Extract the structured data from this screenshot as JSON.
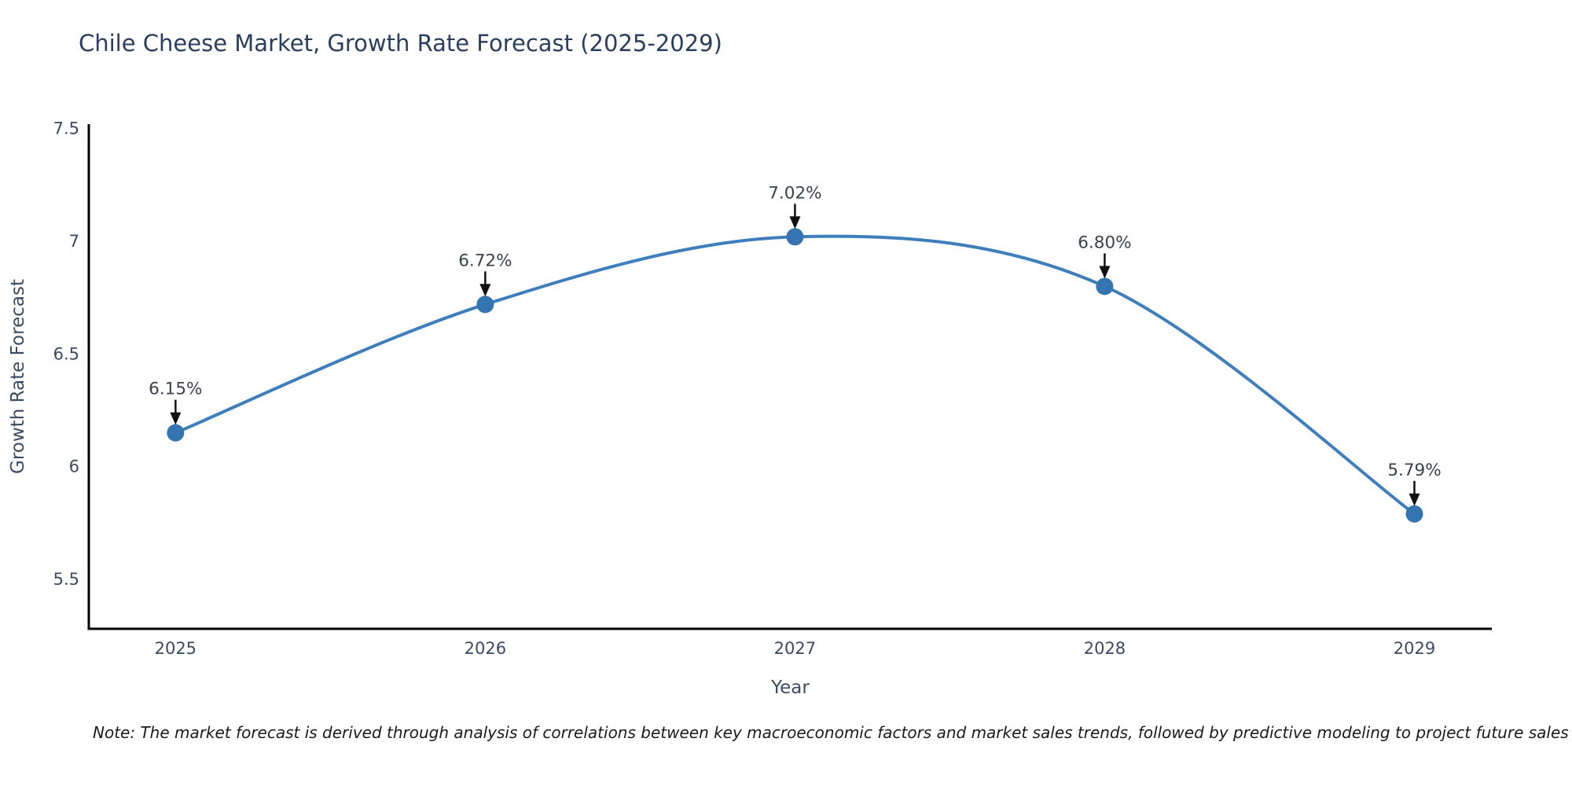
{
  "note": "Note: The market forecast is derived through analysis of correlations between key macroeconomic factors and market sales trends, followed by predictive modeling to project future sales",
  "chart_data": {
    "type": "line",
    "title": "Chile Cheese Market, Growth Rate Forecast (2025-2029)",
    "x": [
      2025,
      2026,
      2027,
      2028,
      2029
    ],
    "x_tick_labels": [
      "2025",
      "2026",
      "2027",
      "2028",
      "2029"
    ],
    "values": [
      6.15,
      6.72,
      7.02,
      6.8,
      5.79
    ],
    "point_labels": [
      "6.15%",
      "6.72%",
      "7.02%",
      "6.80%",
      "5.79%"
    ],
    "xlabel": "Year",
    "ylabel": "Growth Rate Forecast",
    "yticks": [
      7.5,
      7,
      6.5,
      6,
      5.5
    ],
    "ytick_labels": [
      "7.5",
      "7",
      "6.5",
      "6",
      "5.5"
    ],
    "ylim": [
      5.28,
      7.52
    ],
    "xlim": [
      2024.72,
      2029.25
    ],
    "grid": false,
    "legend": null,
    "line_smoothing": "spline",
    "colors": {
      "line": "#3f7ebd",
      "marker": "#3474b1",
      "axis": "#000000",
      "title": "#2a3f5f",
      "tick": "#3b4a63",
      "axis_label": "#3b4a63",
      "annotation": "#3a4148",
      "arrow": "#111111",
      "note": "#1a1a1a",
      "background": "#ffffff"
    }
  }
}
